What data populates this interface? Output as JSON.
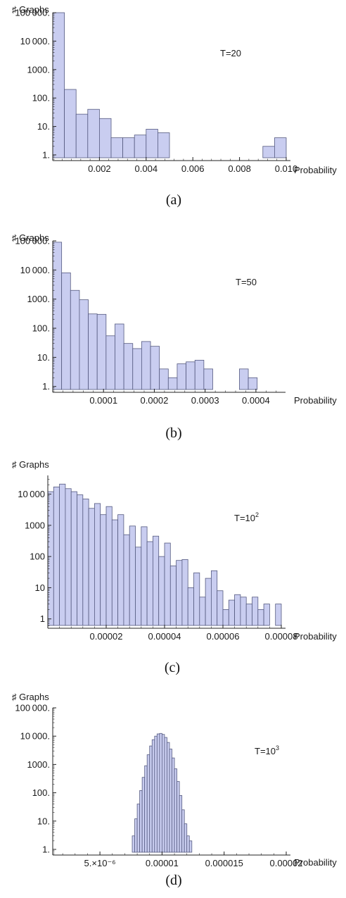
{
  "chart_data": [
    {
      "type": "bar",
      "scale": "log",
      "ylabel": "♯ Graphs",
      "xlabel": "Probability",
      "annotation": {
        "text": "T=20",
        "sup": ""
      },
      "caption": "(a)",
      "xlim": [
        0,
        0.01
      ],
      "ylim_log10": [
        -0.2,
        5
      ],
      "xticks": [
        0.002,
        0.004,
        0.006,
        0.008,
        0.01
      ],
      "xtick_labels": [
        "0.002",
        "0.004",
        "0.006",
        "0.008",
        "0.010"
      ],
      "yticks": [
        1,
        10,
        100,
        1000,
        10000,
        100000
      ],
      "ytick_labels": [
        "1.",
        "10.",
        "100.",
        "1000.",
        "10 000.",
        "100 000."
      ],
      "bin_width": 0.0005,
      "bins": [
        {
          "x0": 0.0,
          "count": 100000
        },
        {
          "x0": 0.0005,
          "count": 200
        },
        {
          "x0": 0.001,
          "count": 27
        },
        {
          "x0": 0.0015,
          "count": 40
        },
        {
          "x0": 0.002,
          "count": 19
        },
        {
          "x0": 0.0025,
          "count": 4
        },
        {
          "x0": 0.003,
          "count": 4
        },
        {
          "x0": 0.0035,
          "count": 5
        },
        {
          "x0": 0.004,
          "count": 8
        },
        {
          "x0": 0.0045,
          "count": 6
        },
        {
          "x0": 0.009,
          "count": 2
        },
        {
          "x0": 0.0095,
          "count": 4
        }
      ]
    },
    {
      "type": "bar",
      "scale": "log",
      "ylabel": "♯ Graphs",
      "xlabel": "Probability",
      "annotation": {
        "text": "T=50",
        "sup": ""
      },
      "caption": "(b)",
      "xlim": [
        0,
        0.00045
      ],
      "ylim_log10": [
        -0.2,
        5
      ],
      "xticks": [
        0.0001,
        0.0002,
        0.0003,
        0.0004
      ],
      "xtick_labels": [
        "0.0001",
        "0.0002",
        "0.0003",
        "0.0004"
      ],
      "yticks": [
        1,
        10,
        100,
        1000,
        10000,
        100000
      ],
      "ytick_labels": [
        "1.",
        "10.",
        "100.",
        "1000.",
        "10 000.",
        "100 000."
      ],
      "bin_width": 1.75e-05,
      "bins": [
        {
          "x0": 0.0,
          "count": 90000
        },
        {
          "x0": 1.75e-05,
          "count": 8000
        },
        {
          "x0": 3.5e-05,
          "count": 2000
        },
        {
          "x0": 5.25e-05,
          "count": 950
        },
        {
          "x0": 7e-05,
          "count": 310
        },
        {
          "x0": 8.75e-05,
          "count": 300
        },
        {
          "x0": 0.000105,
          "count": 55
        },
        {
          "x0": 0.0001225,
          "count": 140
        },
        {
          "x0": 0.00014,
          "count": 30
        },
        {
          "x0": 0.0001575,
          "count": 20
        },
        {
          "x0": 0.000175,
          "count": 35
        },
        {
          "x0": 0.0001925,
          "count": 24
        },
        {
          "x0": 0.00021,
          "count": 4
        },
        {
          "x0": 0.0002275,
          "count": 2
        },
        {
          "x0": 0.000245,
          "count": 6
        },
        {
          "x0": 0.0002625,
          "count": 7
        },
        {
          "x0": 0.00028,
          "count": 8
        },
        {
          "x0": 0.0002975,
          "count": 4
        },
        {
          "x0": 0.0003675,
          "count": 4
        },
        {
          "x0": 0.000385,
          "count": 2
        }
      ]
    },
    {
      "type": "bar",
      "scale": "log",
      "ylabel": "♯ Graphs",
      "xlabel": "Probability",
      "annotation": {
        "text": "T=10",
        "sup": "2"
      },
      "caption": "(c)",
      "xlim": [
        0,
        8e-05
      ],
      "ylim_log10": [
        -0.3,
        4.6
      ],
      "xticks": [
        2e-05,
        4e-05,
        6e-05,
        8e-05
      ],
      "xtick_labels": [
        "0.00002",
        "0.00004",
        "0.00006",
        "0.00008"
      ],
      "yticks": [
        1,
        10,
        100,
        1000,
        10000
      ],
      "ytick_labels": [
        "1",
        "10",
        "100",
        "1000",
        "10 000"
      ],
      "bin_width": 2e-06,
      "bins": [
        {
          "x0": 0.0,
          "count": 12000
        },
        {
          "x0": 2e-06,
          "count": 17000
        },
        {
          "x0": 4e-06,
          "count": 21000
        },
        {
          "x0": 6e-06,
          "count": 15000
        },
        {
          "x0": 8e-06,
          "count": 12000
        },
        {
          "x0": 1e-05,
          "count": 9500
        },
        {
          "x0": 1.2e-05,
          "count": 7000
        },
        {
          "x0": 1.4e-05,
          "count": 3500
        },
        {
          "x0": 1.6e-05,
          "count": 5000
        },
        {
          "x0": 1.8e-05,
          "count": 2200
        },
        {
          "x0": 2e-05,
          "count": 4000
        },
        {
          "x0": 2.2e-05,
          "count": 1500
        },
        {
          "x0": 2.4e-05,
          "count": 2200
        },
        {
          "x0": 2.6e-05,
          "count": 500
        },
        {
          "x0": 2.8e-05,
          "count": 950
        },
        {
          "x0": 3e-05,
          "count": 200
        },
        {
          "x0": 3.2e-05,
          "count": 900
        },
        {
          "x0": 3.4e-05,
          "count": 300
        },
        {
          "x0": 3.6e-05,
          "count": 450
        },
        {
          "x0": 3.8e-05,
          "count": 100
        },
        {
          "x0": 4e-05,
          "count": 270
        },
        {
          "x0": 4.2e-05,
          "count": 50
        },
        {
          "x0": 4.4e-05,
          "count": 75
        },
        {
          "x0": 4.6e-05,
          "count": 80
        },
        {
          "x0": 4.8e-05,
          "count": 10
        },
        {
          "x0": 5e-05,
          "count": 30
        },
        {
          "x0": 5.2e-05,
          "count": 5
        },
        {
          "x0": 5.4e-05,
          "count": 20
        },
        {
          "x0": 5.6e-05,
          "count": 35
        },
        {
          "x0": 5.8e-05,
          "count": 8
        },
        {
          "x0": 6e-05,
          "count": 2
        },
        {
          "x0": 6.2e-05,
          "count": 4
        },
        {
          "x0": 6.4e-05,
          "count": 6
        },
        {
          "x0": 6.6e-05,
          "count": 5
        },
        {
          "x0": 6.8e-05,
          "count": 3
        },
        {
          "x0": 7e-05,
          "count": 5
        },
        {
          "x0": 7.2e-05,
          "count": 2
        },
        {
          "x0": 7.4e-05,
          "count": 3
        },
        {
          "x0": 7.8e-05,
          "count": 3
        }
      ]
    },
    {
      "type": "bar",
      "scale": "log",
      "ylabel": "♯ Graphs",
      "xlabel": "Probability",
      "annotation": {
        "text": "T=10",
        "sup": "3"
      },
      "caption": "(d)",
      "xlim": [
        1.2e-06,
        2e-05
      ],
      "ylim_log10": [
        -0.2,
        5
      ],
      "xticks": [
        5e-06,
        1e-05,
        1.5e-05,
        2e-05
      ],
      "xtick_labels": [
        "5.×10⁻⁶",
        "0.00001",
        "0.000015",
        "0.00002"
      ],
      "yticks": [
        1,
        10,
        100,
        1000,
        10000,
        100000
      ],
      "ytick_labels": [
        "1.",
        "10.",
        "100.",
        "1000.",
        "10 000.",
        "100 000."
      ],
      "bin_width": 2e-07,
      "bins": [
        {
          "x0": 7.6e-06,
          "count": 3
        },
        {
          "x0": 7.8e-06,
          "count": 12
        },
        {
          "x0": 8e-06,
          "count": 40
        },
        {
          "x0": 8.2e-06,
          "count": 120
        },
        {
          "x0": 8.4e-06,
          "count": 350
        },
        {
          "x0": 8.6e-06,
          "count": 900
        },
        {
          "x0": 8.8e-06,
          "count": 2200
        },
        {
          "x0": 9e-06,
          "count": 4500
        },
        {
          "x0": 9.2e-06,
          "count": 7500
        },
        {
          "x0": 9.4e-06,
          "count": 10000
        },
        {
          "x0": 9.6e-06,
          "count": 12000
        },
        {
          "x0": 9.8e-06,
          "count": 12500
        },
        {
          "x0": 1e-05,
          "count": 11500
        },
        {
          "x0": 1.02e-05,
          "count": 9000
        },
        {
          "x0": 1.04e-05,
          "count": 6000
        },
        {
          "x0": 1.06e-05,
          "count": 3500
        },
        {
          "x0": 1.08e-05,
          "count": 1700
        },
        {
          "x0": 1.1e-05,
          "count": 700
        },
        {
          "x0": 1.12e-05,
          "count": 250
        },
        {
          "x0": 1.14e-05,
          "count": 80
        },
        {
          "x0": 1.16e-05,
          "count": 25
        },
        {
          "x0": 1.18e-05,
          "count": 8
        },
        {
          "x0": 1.2e-05,
          "count": 3
        },
        {
          "x0": 1.22e-05,
          "count": 2
        }
      ]
    }
  ],
  "colors": {
    "bar_fill": "#c9cdf0",
    "bar_stroke": "#555a80",
    "axis": "#222222"
  }
}
